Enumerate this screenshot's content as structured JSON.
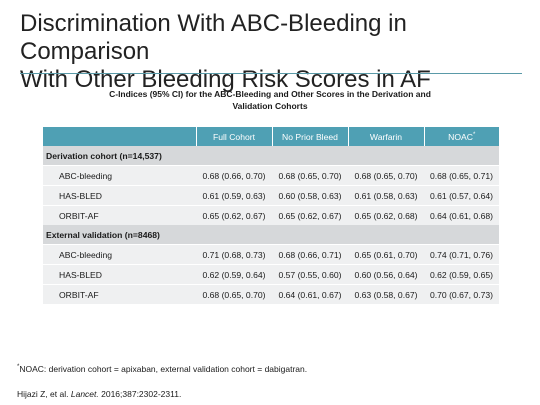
{
  "slide": {
    "title_line1": "Discrimination With ABC-Bleeding in Comparison",
    "title_line2": "With Other Bleeding Risk Scores in AF",
    "rule_color": "#5a9aa8"
  },
  "table": {
    "caption_line1": "C-Indices (95% CI) for the ABC-Bleeding and Other Scores in the Derivation and",
    "caption_line2": "Validation Cohorts",
    "header_color": "#4fa0b4",
    "columns": [
      "",
      "Full Cohort",
      "No Prior Bleed",
      "Warfarin",
      "NOAC"
    ],
    "noac_marker": "*",
    "sections": [
      {
        "label": "Derivation cohort (n=14,537)",
        "rows": [
          {
            "label": "ABC-bleeding",
            "values": [
              "0.68 (0.66, 0.70)",
              "0.68 (0.65, 0.70)",
              "0.68 (0.65, 0.70)",
              "0.68 (0.65, 0.71)"
            ]
          },
          {
            "label": "HAS-BLED",
            "values": [
              "0.61 (0.59, 0.63)",
              "0.60 (0.58, 0.63)",
              "0.61 (0.58, 0.63)",
              "0.61 (0.57, 0.64)"
            ]
          },
          {
            "label": "ORBIT-AF",
            "values": [
              "0.65 (0.62, 0.67)",
              "0.65 (0.62, 0.67)",
              "0.65 (0.62, 0.68)",
              "0.64 (0.61, 0.68)"
            ]
          }
        ]
      },
      {
        "label": "External validation (n=8468)",
        "rows": [
          {
            "label": "ABC-bleeding",
            "values": [
              "0.71 (0.68, 0.73)",
              "0.68 (0.66, 0.71)",
              "0.65 (0.61, 0.70)",
              "0.74 (0.71, 0.76)"
            ]
          },
          {
            "label": "HAS-BLED",
            "values": [
              "0.62 (0.59, 0.64)",
              "0.57 (0.55, 0.60)",
              "0.60 (0.56, 0.64)",
              "0.62 (0.59, 0.65)"
            ]
          },
          {
            "label": "ORBIT-AF",
            "values": [
              "0.68 (0.65, 0.70)",
              "0.64 (0.61, 0.67)",
              "0.63 (0.58, 0.67)",
              "0.70 (0.67, 0.73)"
            ]
          }
        ]
      }
    ]
  },
  "footnote": {
    "marker": "*",
    "text": "NOAC: derivation cohort = apixaban, external validation cohort = dabigatran."
  },
  "citation": {
    "authors": "Hijazi Z, et al. ",
    "journal": "Lancet.",
    "details": " 2016;387:2302-2311."
  }
}
